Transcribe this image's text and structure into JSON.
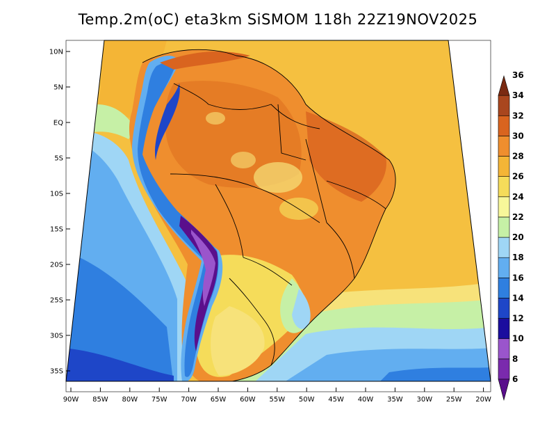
{
  "title": "Temp.2m(oC) eta3km SiSMOM 118h 22Z19NOV2025",
  "map": {
    "region": "South America",
    "variable": "2 m temperature",
    "units": "oC",
    "lon_range": [
      -90,
      -20
    ],
    "lat_range": [
      -38,
      11
    ],
    "lon_ticks": [
      "90W",
      "85W",
      "80W",
      "75W",
      "70W",
      "65W",
      "60W",
      "55W",
      "50W",
      "45W",
      "40W",
      "35W",
      "30W",
      "25W",
      "20W"
    ],
    "lat_ticks": [
      "10N",
      "5N",
      "EQ",
      "5S",
      "10S",
      "15S",
      "20S",
      "25S",
      "30S",
      "35S"
    ]
  },
  "colorbar": {
    "labels": [
      "6",
      "8",
      "10",
      "12",
      "14",
      "16",
      "18",
      "20",
      "22",
      "24",
      "26",
      "28",
      "30",
      "32",
      "34",
      "36"
    ],
    "colors": [
      "#5a0f8c",
      "#7a2aad",
      "#9a55cc",
      "#1b0d9e",
      "#1e46c8",
      "#2f7fe0",
      "#62aef0",
      "#9fd6f5",
      "#c6f0a6",
      "#f7f79a",
      "#f5dc5a",
      "#f4b536",
      "#ef8e2e",
      "#d9641f",
      "#a9461e",
      "#7a2a12"
    ]
  }
}
